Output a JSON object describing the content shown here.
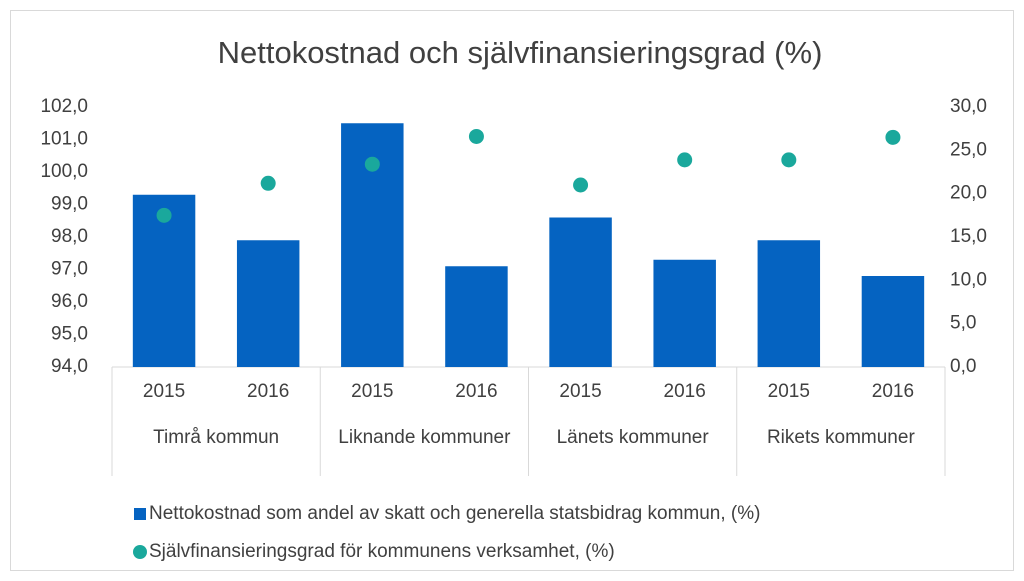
{
  "chart_data": {
    "type": "bar_scatter",
    "title": "Nettokostnad och självfinansieringsgrad (%)",
    "categories": [
      "2015",
      "2016",
      "2015",
      "2016",
      "2015",
      "2016",
      "2015",
      "2016"
    ],
    "groups": [
      "Timrå kommun",
      "Liknande kommuner",
      "Länets kommuner",
      "Rikets kommuner"
    ],
    "series": [
      {
        "name": "Nettokostnad som andel av skatt och generella statsbidrag kommun, (%)",
        "type": "bar",
        "color": "#0563c1",
        "values": [
          99.3,
          97.9,
          101.5,
          97.1,
          98.6,
          97.3,
          97.9,
          96.8
        ]
      },
      {
        "name": "Självfinansieringsgrad för kommunens verksamhet, (%)",
        "type": "scatter",
        "axis": "y2",
        "color": "#1aa89c",
        "values": [
          17.5,
          21.2,
          23.4,
          26.6,
          21.0,
          23.9,
          23.9,
          26.5
        ]
      }
    ],
    "ylim": [
      94,
      102
    ],
    "yticks": [
      {
        "value": 94,
        "label": "94,0"
      },
      {
        "value": 95,
        "label": "95,0"
      },
      {
        "value": 96,
        "label": "96,0"
      },
      {
        "value": 97,
        "label": "97,0"
      },
      {
        "value": 98,
        "label": "98,0"
      },
      {
        "value": 99,
        "label": "99,0"
      },
      {
        "value": 100,
        "label": "100,0"
      },
      {
        "value": 101,
        "label": "101,0"
      },
      {
        "value": 102,
        "label": "102,0"
      }
    ],
    "y2lim": [
      0,
      30
    ],
    "y2ticks": [
      {
        "value": 0,
        "label": "0,0"
      },
      {
        "value": 5,
        "label": "5,0"
      },
      {
        "value": 10,
        "label": "10,0"
      },
      {
        "value": 15,
        "label": "15,0"
      },
      {
        "value": 20,
        "label": "20,0"
      },
      {
        "value": 25,
        "label": "25,0"
      },
      {
        "value": 30,
        "label": "30,0"
      }
    ],
    "grid": false
  }
}
